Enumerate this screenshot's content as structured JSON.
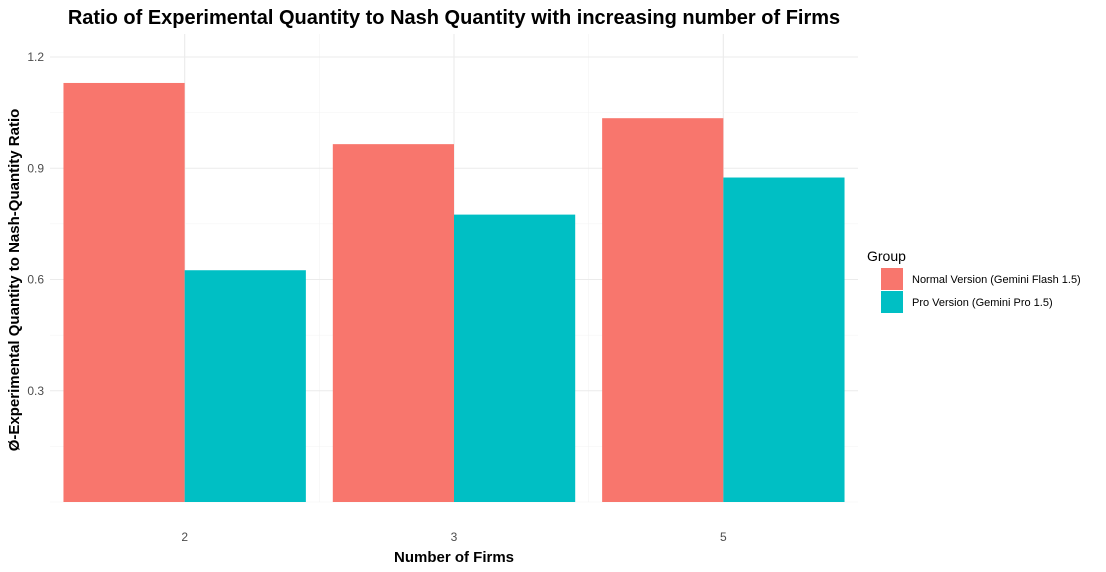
{
  "chart_data": {
    "type": "bar",
    "title": "Ratio of Experimental Quantity to Nash Quantity with increasing number of Firms",
    "xlabel": "Number of Firms",
    "ylabel": "Ø-Experimental Quantity to Nash-Quantity Ratio",
    "categories": [
      "2",
      "3",
      "5"
    ],
    "series": [
      {
        "name": "Normal Version (Gemini Flash 1.5)",
        "color": "#F8766D",
        "values": [
          1.13,
          0.965,
          1.035
        ]
      },
      {
        "name": "Pro Version (Gemini Pro 1.5)",
        "color": "#00BFC4",
        "values": [
          0.625,
          0.775,
          0.875
        ]
      }
    ],
    "ylim": [
      0,
      1.2
    ],
    "yticks": [
      "0.3",
      "0.6",
      "0.9",
      "1.2"
    ],
    "legend": {
      "title": "Group",
      "position": "right"
    },
    "grid": true
  }
}
